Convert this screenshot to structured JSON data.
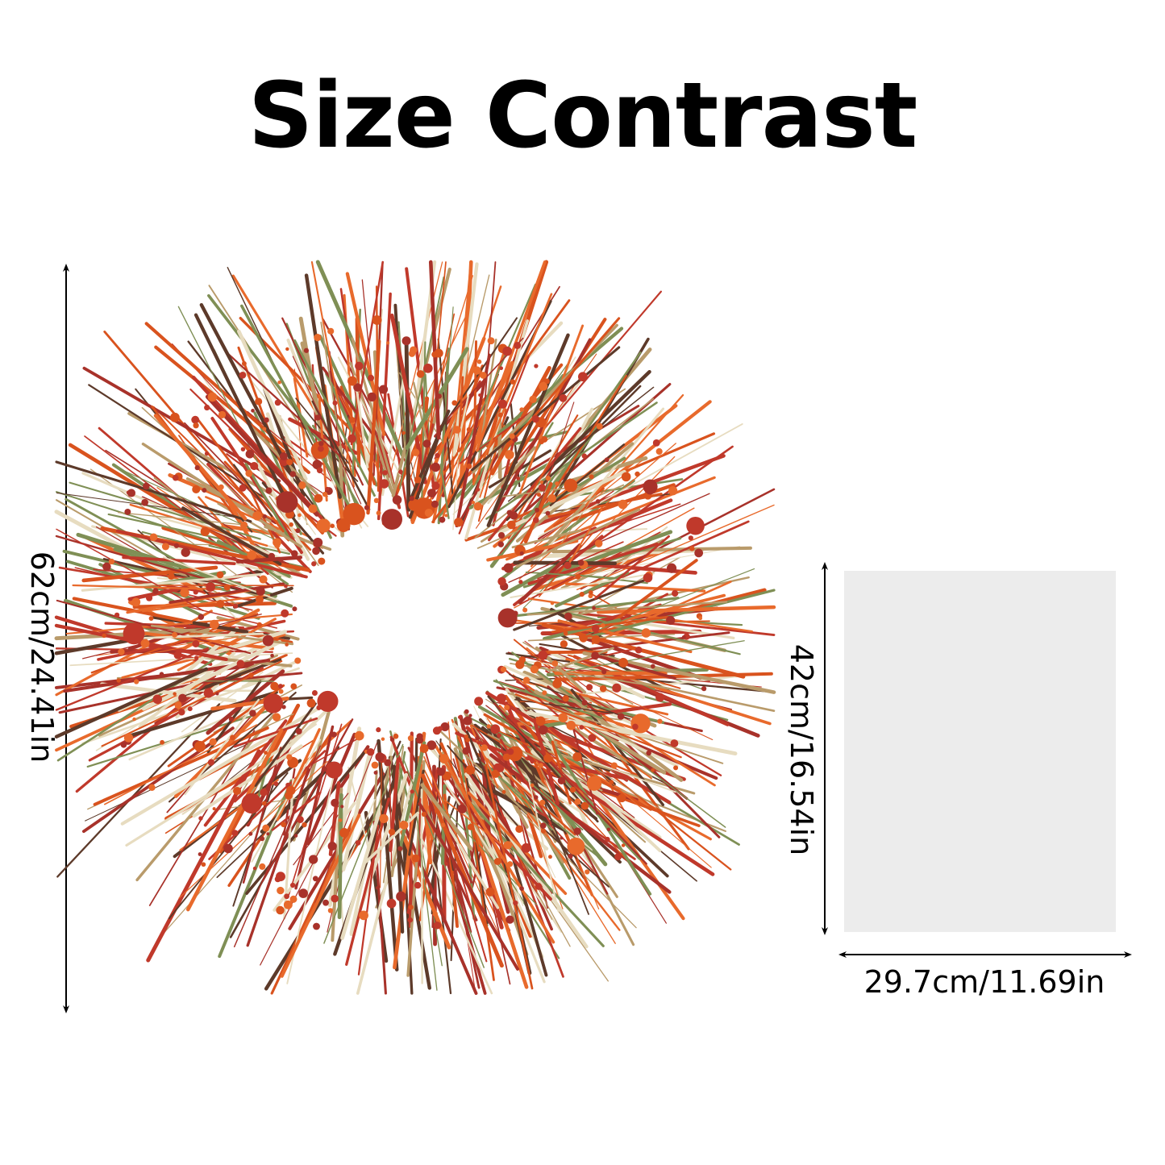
{
  "title": "Size Contrast",
  "wreath": {
    "height_label": "62cm/24.41in",
    "colors": [
      "#c0392b",
      "#d9531e",
      "#a8322a",
      "#e86a2c",
      "#b99b6b",
      "#e7dcc0",
      "#7f8f55",
      "#5d3a2a"
    ]
  },
  "paper": {
    "height_label": "42cm/16.54in",
    "width_label": "29.7cm/11.69in",
    "color": "#ececec"
  }
}
